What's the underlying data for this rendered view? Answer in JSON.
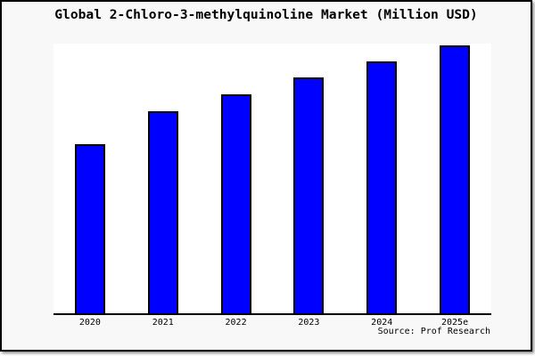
{
  "title": "Global 2-Chloro-3-methylquinoline Market (Million USD)",
  "source_credit": "Source: Prof Research",
  "colors": {
    "bar_fill": "#0000ff",
    "bar_border": "#000000",
    "frame_background": "#f8f8f8",
    "plot_background": "#ffffff",
    "axis": "#000000",
    "frame_border": "#000000",
    "text": "#000000"
  },
  "chart_data": {
    "type": "bar",
    "title": "Global 2-Chloro-3-methylquinoline Market (Million USD)",
    "categories": [
      "2020",
      "2021",
      "2022",
      "2023",
      "2024",
      "2025e"
    ],
    "values": [
      63.1,
      75.4,
      81.7,
      88.0,
      94.0,
      100.0
    ],
    "value_basis": "relative index estimated from bar heights (2025e = 100); chart displays no y-axis or data labels",
    "xlabel": "",
    "ylabel": "",
    "ylim": [
      0,
      100.7
    ],
    "grid": false,
    "legend": false,
    "annotations": [
      "Source: Prof Research"
    ]
  }
}
